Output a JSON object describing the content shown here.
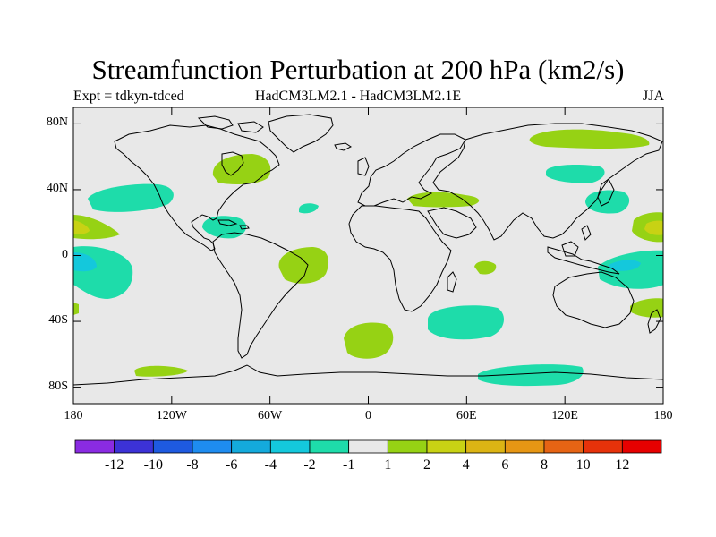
{
  "header": {
    "title": "Streamfunction Perturbation at 200 hPa (km2/s)",
    "left_label": "Expt = tdkyn-tdced",
    "center_label": "HadCM3LM2.1 - HadCM3LM2.1E",
    "right_label": "JJA"
  },
  "map": {
    "background_color": "#e8e8e8",
    "coastline_color": "#000000",
    "lat_ticks": [
      {
        "value": 80,
        "label": "80N"
      },
      {
        "value": 40,
        "label": "40N"
      },
      {
        "value": 0,
        "label": "0"
      },
      {
        "value": -40,
        "label": "40S"
      },
      {
        "value": -80,
        "label": "80S"
      }
    ],
    "lon_ticks": [
      {
        "value": -180,
        "label": "180"
      },
      {
        "value": -120,
        "label": "120W"
      },
      {
        "value": -60,
        "label": "60W"
      },
      {
        "value": 0,
        "label": "0"
      },
      {
        "value": 60,
        "label": "60E"
      },
      {
        "value": 120,
        "label": "120E"
      },
      {
        "value": 180,
        "label": "180"
      }
    ]
  },
  "colorbar": {
    "colors": [
      "#8a2be2",
      "#3c32d6",
      "#1e5ae0",
      "#1e8cf0",
      "#14aadc",
      "#14c8dc",
      "#1edcaa",
      "#e8e8e8",
      "#96d214",
      "#c8d214",
      "#dcb414",
      "#e69614",
      "#e66414",
      "#e6320a",
      "#e60000"
    ],
    "labels": [
      "-12",
      "-10",
      "-8",
      "-6",
      "-4",
      "-2",
      "-1",
      "1",
      "2",
      "4",
      "6",
      "8",
      "10",
      "12"
    ]
  },
  "chart_data": {
    "type": "heatmap",
    "title": "Streamfunction Perturbation at 200 hPa (km2/s)",
    "variable": "Streamfunction Perturbation",
    "level": "200 hPa",
    "units": "km2/s",
    "season": "JJA",
    "experiment": "tdkyn-tdced",
    "comparison": "HadCM3LM2.1 - HadCM3LM2.1E",
    "contour_levels": [
      -12,
      -10,
      -8,
      -6,
      -4,
      -2,
      -1,
      1,
      2,
      4,
      6,
      8,
      10,
      12
    ],
    "xlim": [
      -180,
      180
    ],
    "ylim": [
      -90,
      90
    ],
    "regions": [
      {
        "name": "Hudson Bay / E Canada",
        "sign": "positive",
        "range": "1 to 2",
        "lon": -75,
        "lat": 53
      },
      {
        "name": "Arctic Siberia",
        "sign": "positive",
        "range": "1 to 2",
        "lon": 135,
        "lat": 72
      },
      {
        "name": "Central Asia / Mongolia",
        "sign": "negative",
        "range": "-2 to -1",
        "lon": 105,
        "lat": 52
      },
      {
        "name": "Middle East / Mediterranean",
        "sign": "positive",
        "range": "1 to 2",
        "lon": 35,
        "lat": 33
      },
      {
        "name": "East China Sea",
        "sign": "negative",
        "range": "-2 to -1",
        "lon": 140,
        "lat": 33
      },
      {
        "name": "North Pacific off California",
        "sign": "negative",
        "range": "-2 to -1",
        "lon": -145,
        "lat": 35
      },
      {
        "name": "Central North Atlantic",
        "sign": "negative",
        "range": "-2 to -1",
        "lon": -35,
        "lat": 30
      },
      {
        "name": "Gulf of Mexico / Caribbean",
        "sign": "negative",
        "range": "-2 to -1",
        "lon": -85,
        "lat": 18
      },
      {
        "name": "Eastern tropical Pacific N",
        "sign": "positive",
        "range": "2 to 4",
        "lon": -170,
        "lat": 18
      },
      {
        "name": "Western Pacific N",
        "sign": "positive",
        "range": "2 to 4",
        "lon": 175,
        "lat": 18
      },
      {
        "name": "Eastern tropical Pacific S",
        "sign": "negative",
        "range": "-4 to -2",
        "lon": -170,
        "lat": -8
      },
      {
        "name": "Indonesia / W Pacific S",
        "sign": "negative",
        "range": "-4 to -2",
        "lon": 155,
        "lat": -8
      },
      {
        "name": "Eastern Brazil",
        "sign": "positive",
        "range": "1 to 2",
        "lon": -40,
        "lat": -15
      },
      {
        "name": "Western Indian Ocean",
        "sign": "positive",
        "range": "1 to 2",
        "lon": 60,
        "lat": -10
      },
      {
        "name": "South Atlantic",
        "sign": "positive",
        "range": "1 to 2",
        "lon": 0,
        "lat": -45
      },
      {
        "name": "Southern Indian Ocean",
        "sign": "negative",
        "range": "-2 to -1",
        "lon": 60,
        "lat": -30
      },
      {
        "name": "Southwest Pacific (NZ)",
        "sign": "positive",
        "range": "1 to 2",
        "lon": 170,
        "lat": -27
      },
      {
        "name": "Southeast Pacific",
        "sign": "positive",
        "range": "1 to 2",
        "lon": -180,
        "lat": -28
      },
      {
        "name": "Antarctic Indian sector",
        "sign": "negative",
        "range": "-2 to -1",
        "lon": 100,
        "lat": -72
      },
      {
        "name": "Amundsen Sea",
        "sign": "positive",
        "range": "1 to 2",
        "lon": -130,
        "lat": -72
      }
    ]
  }
}
